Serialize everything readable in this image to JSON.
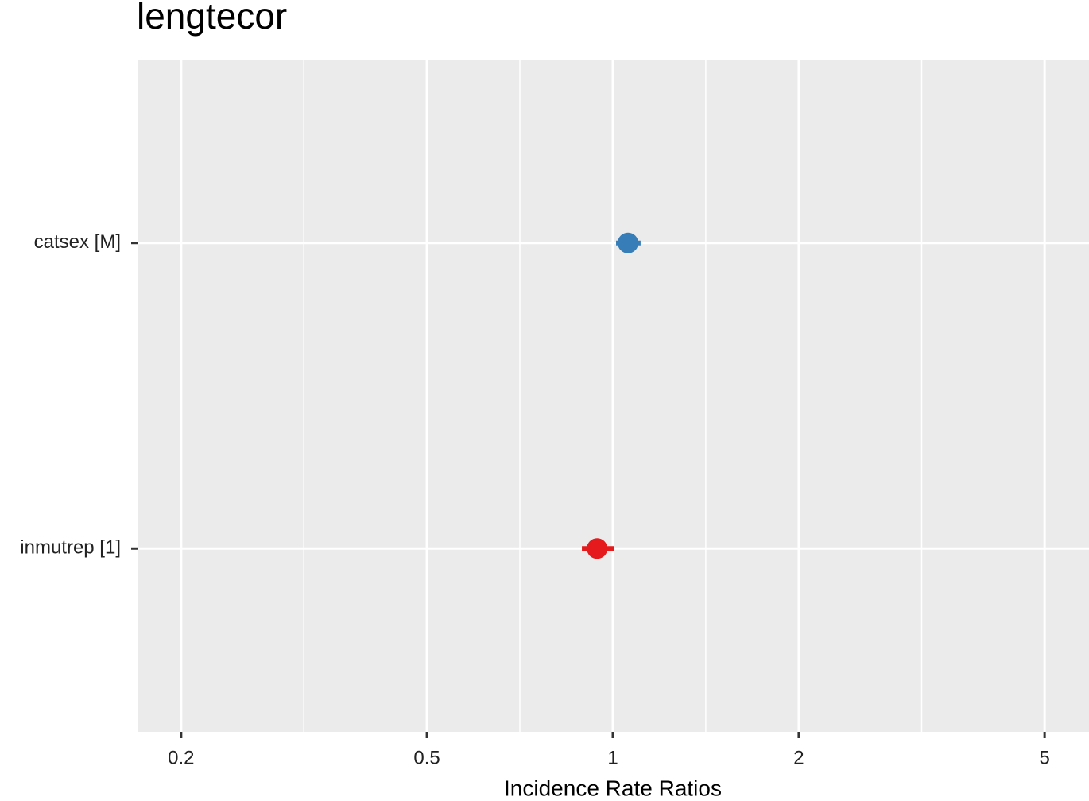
{
  "chart_data": {
    "type": "forest",
    "title": "lengtecor",
    "x_label": "Incidence Rate Ratios",
    "log_x": true,
    "categories": [
      "catsex [M]",
      "inmutrep [1]"
    ],
    "values": [
      1.058,
      0.943
    ],
    "lower": [
      1.012,
      0.891
    ],
    "upper": [
      1.109,
      1.006
    ],
    "colors": [
      "#377eb8",
      "#e41a1c"
    ],
    "xlim": [
      0.17,
      5.9
    ],
    "xticks": [
      0.2,
      0.5,
      1,
      2,
      5
    ],
    "x_minor_grid": [
      0.316,
      0.707,
      1.414,
      3.162
    ],
    "grid": true,
    "panel_color": "#ebebeb"
  }
}
